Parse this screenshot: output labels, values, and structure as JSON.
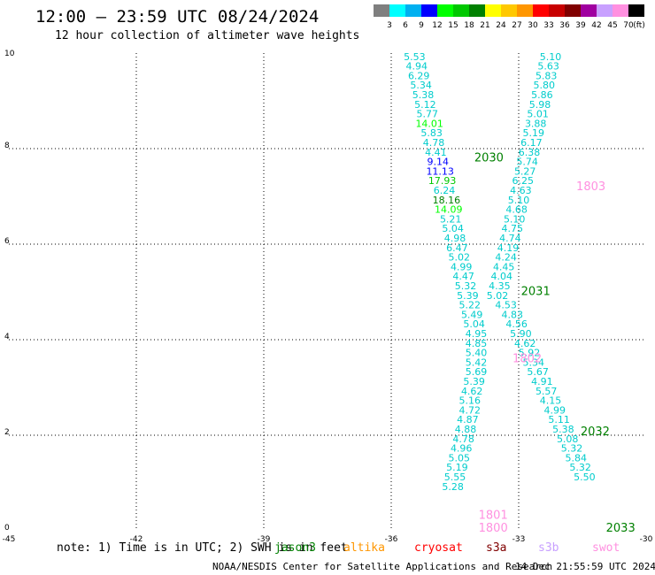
{
  "header": {
    "title": "12:00 – 23:59 UTC 08/24/2024",
    "subtitle": "12 hour collection of altimeter wave heights"
  },
  "colorbar": {
    "labels": [
      "3",
      "6",
      "9",
      "12",
      "15",
      "18",
      "21",
      "24",
      "27",
      "30",
      "33",
      "36",
      "39",
      "42",
      "45",
      "70"
    ],
    "unit": "(ft)",
    "colors": [
      "#7f7f7f",
      "#00ffff",
      "#00b0f0",
      "#0000ff",
      "#00ff00",
      "#00c800",
      "#008000",
      "#ffff00",
      "#ffc800",
      "#ff9600",
      "#ff0000",
      "#c80000",
      "#800000",
      "#a000a0",
      "#c8a0ff",
      "#ff90e0",
      "#000000"
    ]
  },
  "chart_data": {
    "type": "scatter",
    "xlim": [
      -45,
      -30
    ],
    "ylim": [
      0,
      10
    ],
    "x_ticks": [
      "-45",
      "-42",
      "-39",
      "-36",
      "-33",
      "-30"
    ],
    "y_ticks": [
      "0",
      "2",
      "4",
      "6",
      "8",
      "10"
    ],
    "grid": true,
    "series": [
      {
        "label_color": "#00cccc",
        "points": [
          {
            "x": -35.45,
            "y": 9.93,
            "v": "5.53"
          },
          {
            "x": -35.4,
            "y": 9.73,
            "v": "4.94"
          },
          {
            "x": -35.35,
            "y": 9.53,
            "v": "6.29"
          },
          {
            "x": -35.3,
            "y": 9.33,
            "v": "5.34"
          },
          {
            "x": -35.25,
            "y": 9.13,
            "v": "5.38"
          },
          {
            "x": -35.2,
            "y": 8.93,
            "v": "5.12"
          },
          {
            "x": -35.15,
            "y": 8.73,
            "v": "5.77"
          },
          {
            "x": -35.1,
            "y": 8.53,
            "v": "14.01",
            "c": "#00ff00"
          },
          {
            "x": -35.05,
            "y": 8.33,
            "v": "5.83"
          },
          {
            "x": -35.0,
            "y": 8.13,
            "v": "4.78"
          },
          {
            "x": -34.95,
            "y": 7.93,
            "v": "4.41"
          },
          {
            "x": -34.9,
            "y": 7.73,
            "v": "9.14",
            "c": "#0000ff"
          },
          {
            "x": -34.85,
            "y": 7.53,
            "v": "11.13",
            "c": "#0000ff"
          },
          {
            "x": -34.8,
            "y": 7.33,
            "v": "17.93",
            "c": "#00c800"
          },
          {
            "x": -34.75,
            "y": 7.13,
            "v": "6.24"
          },
          {
            "x": -34.7,
            "y": 6.93,
            "v": "18.16",
            "c": "#008000"
          },
          {
            "x": -34.65,
            "y": 6.73,
            "v": "14.09",
            "c": "#00ff00"
          },
          {
            "x": -34.6,
            "y": 6.53,
            "v": "5.21"
          },
          {
            "x": -34.55,
            "y": 6.33,
            "v": "5.04"
          },
          {
            "x": -34.5,
            "y": 6.13,
            "v": "4.98"
          },
          {
            "x": -34.45,
            "y": 5.93,
            "v": "6.47"
          },
          {
            "x": -34.4,
            "y": 5.73,
            "v": "5.02"
          },
          {
            "x": -34.35,
            "y": 5.53,
            "v": "4.99"
          },
          {
            "x": -34.3,
            "y": 5.33,
            "v": "4.47"
          },
          {
            "x": -34.25,
            "y": 5.13,
            "v": "5.32"
          },
          {
            "x": -34.2,
            "y": 4.93,
            "v": "5.39"
          },
          {
            "x": -34.15,
            "y": 4.73,
            "v": "5.22"
          },
          {
            "x": -34.1,
            "y": 4.53,
            "v": "5.49"
          },
          {
            "x": -34.05,
            "y": 4.33,
            "v": "5.04"
          },
          {
            "x": -34.0,
            "y": 4.13,
            "v": "4.95"
          },
          {
            "x": -34.0,
            "y": 3.93,
            "v": "4.85"
          },
          {
            "x": -34.0,
            "y": 3.73,
            "v": "5.40"
          },
          {
            "x": -34.0,
            "y": 3.53,
            "v": "5.42"
          },
          {
            "x": -34.0,
            "y": 3.33,
            "v": "5.69"
          },
          {
            "x": -34.05,
            "y": 3.13,
            "v": "5.39"
          },
          {
            "x": -34.1,
            "y": 2.93,
            "v": "4.62"
          },
          {
            "x": -34.15,
            "y": 2.73,
            "v": "5.16"
          },
          {
            "x": -34.15,
            "y": 2.53,
            "v": "4.72"
          },
          {
            "x": -34.2,
            "y": 2.33,
            "v": "4.87"
          },
          {
            "x": -34.25,
            "y": 2.13,
            "v": "4.88"
          },
          {
            "x": -34.3,
            "y": 1.93,
            "v": "4.78"
          },
          {
            "x": -34.35,
            "y": 1.73,
            "v": "4.96"
          },
          {
            "x": -34.4,
            "y": 1.53,
            "v": "5.05"
          },
          {
            "x": -34.45,
            "y": 1.33,
            "v": "5.19"
          },
          {
            "x": -34.5,
            "y": 1.13,
            "v": "5.55"
          },
          {
            "x": -34.55,
            "y": 0.93,
            "v": "5.28"
          }
        ]
      },
      {
        "label_color": "#00cccc",
        "points": [
          {
            "x": -32.25,
            "y": 9.93,
            "v": "5.10"
          },
          {
            "x": -32.3,
            "y": 9.73,
            "v": "5.63"
          },
          {
            "x": -32.35,
            "y": 9.53,
            "v": "5.83"
          },
          {
            "x": -32.4,
            "y": 9.33,
            "v": "5.80"
          },
          {
            "x": -32.45,
            "y": 9.13,
            "v": "5.86"
          },
          {
            "x": -32.5,
            "y": 8.93,
            "v": "5.98"
          },
          {
            "x": -32.55,
            "y": 8.73,
            "v": "5.01"
          },
          {
            "x": -32.6,
            "y": 8.53,
            "v": "3.88"
          },
          {
            "x": -32.65,
            "y": 8.33,
            "v": "5.19"
          },
          {
            "x": -32.7,
            "y": 8.13,
            "v": "6.17"
          },
          {
            "x": -32.75,
            "y": 7.93,
            "v": "6.38"
          },
          {
            "x": -32.8,
            "y": 7.73,
            "v": "5.74"
          },
          {
            "x": -32.85,
            "y": 7.53,
            "v": "5.27"
          },
          {
            "x": -32.9,
            "y": 7.33,
            "v": "6.25"
          },
          {
            "x": -32.95,
            "y": 7.13,
            "v": "4.63"
          },
          {
            "x": -33.0,
            "y": 6.93,
            "v": "5.10"
          },
          {
            "x": -33.05,
            "y": 6.73,
            "v": "4.68"
          },
          {
            "x": -33.1,
            "y": 6.53,
            "v": "5.10"
          },
          {
            "x": -33.15,
            "y": 6.33,
            "v": "4.75"
          },
          {
            "x": -33.2,
            "y": 6.13,
            "v": "4.74"
          },
          {
            "x": -33.25,
            "y": 5.93,
            "v": "4.19"
          },
          {
            "x": -33.3,
            "y": 5.73,
            "v": "4.24"
          },
          {
            "x": -33.35,
            "y": 5.53,
            "v": "4.45"
          },
          {
            "x": -33.4,
            "y": 5.33,
            "v": "4.04"
          },
          {
            "x": -33.45,
            "y": 5.13,
            "v": "4.35"
          },
          {
            "x": -33.5,
            "y": 4.93,
            "v": "5.02"
          },
          {
            "x": -33.3,
            "y": 4.73,
            "v": "4.53"
          },
          {
            "x": -33.15,
            "y": 4.53,
            "v": "4.83"
          },
          {
            "x": -33.05,
            "y": 4.33,
            "v": "4.56"
          },
          {
            "x": -32.95,
            "y": 4.13,
            "v": "5.90"
          },
          {
            "x": -32.85,
            "y": 3.93,
            "v": "4.62"
          },
          {
            "x": -32.75,
            "y": 3.73,
            "v": "5.92"
          },
          {
            "x": -32.65,
            "y": 3.53,
            "v": "5.34"
          },
          {
            "x": -32.55,
            "y": 3.33,
            "v": "5.67"
          },
          {
            "x": -32.45,
            "y": 3.13,
            "v": "4.91"
          },
          {
            "x": -32.35,
            "y": 2.93,
            "v": "5.57"
          },
          {
            "x": -32.25,
            "y": 2.73,
            "v": "4.15"
          },
          {
            "x": -32.15,
            "y": 2.53,
            "v": "4.99"
          },
          {
            "x": -32.05,
            "y": 2.33,
            "v": "5.11"
          },
          {
            "x": -31.95,
            "y": 2.13,
            "v": "5.38"
          },
          {
            "x": -31.85,
            "y": 1.93,
            "v": "5.08"
          },
          {
            "x": -31.75,
            "y": 1.73,
            "v": "5.32"
          },
          {
            "x": -31.65,
            "y": 1.53,
            "v": "5.84"
          },
          {
            "x": -31.55,
            "y": 1.33,
            "v": "5.32"
          },
          {
            "x": -31.45,
            "y": 1.13,
            "v": "5.50"
          }
        ]
      }
    ],
    "time_labels": [
      {
        "x": -33.7,
        "y": 7.75,
        "text": "2030",
        "color": "#008000"
      },
      {
        "x": -31.3,
        "y": 7.15,
        "text": "1803",
        "color": "#ff90e0"
      },
      {
        "x": -32.6,
        "y": 4.95,
        "text": "2031",
        "color": "#008000"
      },
      {
        "x": -32.8,
        "y": 3.55,
        "text": "1802",
        "color": "#ff90e0"
      },
      {
        "x": -31.2,
        "y": 2.02,
        "text": "2032",
        "color": "#008000"
      },
      {
        "x": -33.6,
        "y": 0.27,
        "text": "1801",
        "color": "#ff90e0"
      },
      {
        "x": -33.6,
        "y": 0.0,
        "text": "1800",
        "color": "#ff90e0"
      },
      {
        "x": -30.6,
        "y": 0.0,
        "text": "2033",
        "color": "#008000"
      }
    ]
  },
  "note": "note: 1) Time is in UTC; 2) SWH is in feet",
  "satellites": [
    {
      "name": "jason3",
      "color": "#008000"
    },
    {
      "name": "altika",
      "color": "#ff9600"
    },
    {
      "name": "cryosat",
      "color": "#ff0000"
    },
    {
      "name": "s3a",
      "color": "#800000"
    },
    {
      "name": "s3b",
      "color": "#c8a0ff"
    },
    {
      "name": "swot",
      "color": "#ff90e0"
    }
  ],
  "footer": {
    "credit": "NOAA/NESDIS Center for Satellite Applications and Research",
    "timestamp": "14 Dec 21:55:59 UTC 2024"
  }
}
